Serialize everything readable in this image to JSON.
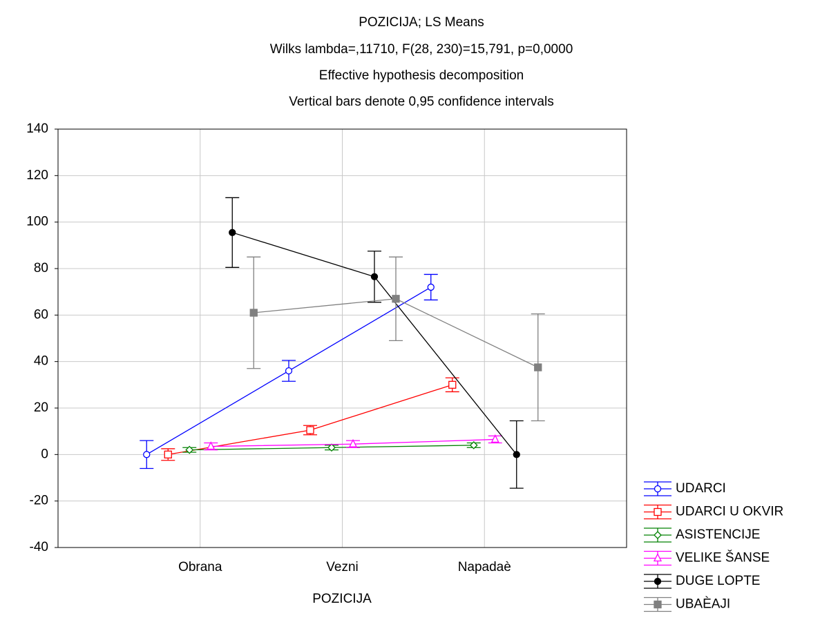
{
  "chart_data": {
    "type": "line",
    "title": "POZICIJA; LS Means",
    "subtitle": [
      "Wilks lambda=,11710, F(28, 230)=15,791, p=0,0000",
      "Effective hypothesis decomposition",
      "Vertical bars denote 0,95 confidence intervals"
    ],
    "x_label": "POZICIJA",
    "categories": [
      "Obrana",
      "Vezni",
      "Napadaè"
    ],
    "ylim": [
      -40,
      140
    ],
    "yticks": [
      -40,
      -20,
      0,
      20,
      40,
      60,
      80,
      100,
      120,
      140
    ],
    "grid": true,
    "legend": "right",
    "series": [
      {
        "name": "UDARCI",
        "color": "#0000ff",
        "marker": "circle",
        "filled": false,
        "values": [
          0,
          36,
          72
        ],
        "errors": [
          6,
          4.5,
          5.5
        ]
      },
      {
        "name": "UDARCI U OKVIR",
        "color": "#ff0000",
        "marker": "square",
        "filled": false,
        "values": [
          0,
          10.5,
          30
        ],
        "errors": [
          2.5,
          2,
          3
        ]
      },
      {
        "name": "ASISTENCIJE",
        "color": "#008000",
        "marker": "diamond",
        "filled": false,
        "values": [
          2,
          3,
          4
        ],
        "errors": [
          1,
          1,
          1
        ]
      },
      {
        "name": "VELIKE ŠANSE",
        "color": "#ff00ff",
        "marker": "triangle",
        "filled": false,
        "values": [
          3.5,
          4.5,
          6.5
        ],
        "errors": [
          1.5,
          1.5,
          1.5
        ]
      },
      {
        "name": "DUGE LOPTE",
        "color": "#000000",
        "marker": "circle",
        "filled": true,
        "values": [
          95.5,
          76.5,
          0
        ],
        "errors": [
          15,
          11,
          14.5
        ]
      },
      {
        "name": "UBAÈAJI",
        "color": "#808080",
        "marker": "square",
        "filled": true,
        "values": [
          61,
          67,
          37.5
        ],
        "errors": [
          24,
          18,
          23
        ]
      }
    ]
  }
}
